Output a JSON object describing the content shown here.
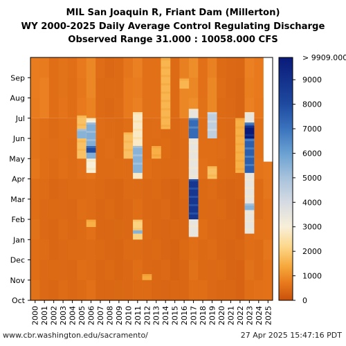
{
  "chart_data": {
    "type": "heatmap",
    "title": "MIL San Joaquin R, Friant Dam (Millerton)",
    "subtitle": "WY 2000-2025 Daily Average Control Regulating Discharge",
    "range_text": "Observed Range 31.000 : 10058.000 CFS",
    "x_tick_labels": [
      "2000",
      "2001",
      "2002",
      "2003",
      "2004",
      "2005",
      "2006",
      "2007",
      "2008",
      "2009",
      "2010",
      "2011",
      "2012",
      "2013",
      "2014",
      "2015",
      "2016",
      "2017",
      "2018",
      "2019",
      "2020",
      "2021",
      "2022",
      "2023",
      "2024",
      "2025"
    ],
    "y_tick_labels": [
      "Oct",
      "Nov",
      "Dec",
      "Jan",
      "Feb",
      "Mar",
      "Apr",
      "May",
      "Jun",
      "Jul",
      "Aug",
      "Sep"
    ],
    "colorbar": {
      "min": 0,
      "max": 9909,
      "ticks": [
        0,
        1000,
        2000,
        3000,
        4000,
        5000,
        6000,
        7000,
        8000,
        9000
      ],
      "top_label": "> 9909.000",
      "stops": [
        {
          "v": 0,
          "c": "#c8510a"
        },
        {
          "v": 700,
          "c": "#e8791c"
        },
        {
          "v": 1400,
          "c": "#f6a93c"
        },
        {
          "v": 2200,
          "c": "#fcd88a"
        },
        {
          "v": 3000,
          "c": "#f8efd9"
        },
        {
          "v": 4000,
          "c": "#d6dbe3"
        },
        {
          "v": 5000,
          "c": "#a7c2dc"
        },
        {
          "v": 6000,
          "c": "#6aa1d2"
        },
        {
          "v": 7000,
          "c": "#3b73bd"
        },
        {
          "v": 8000,
          "c": "#1e4aa0"
        },
        {
          "v": 9909,
          "c": "#0a1a78"
        }
      ]
    },
    "base_flow_by_year": [
      500,
      420,
      380,
      420,
      400,
      450,
      480,
      380,
      380,
      360,
      400,
      450,
      400,
      380,
      370,
      330,
      380,
      500,
      430,
      420,
      380,
      350,
      340,
      500,
      480,
      560
    ],
    "summer_flow_by_year": [
      750,
      800,
      500,
      600,
      500,
      700,
      900,
      450,
      400,
      450,
      700,
      800,
      550,
      550,
      1600,
      450,
      900,
      1000,
      550,
      900,
      450,
      400,
      350,
      800,
      700,
      0
    ],
    "events": [
      {
        "year": 2005,
        "start": "May 01",
        "end": "Jul 05",
        "value": 1800
      },
      {
        "year": 2005,
        "start": "Jun 01",
        "end": "Jun 15",
        "value": 5500
      },
      {
        "year": 2006,
        "start": "Jan 20",
        "end": "Jan 31",
        "value": 1500
      },
      {
        "year": 2006,
        "start": "Apr 10",
        "end": "Jul 01",
        "value": 3000
      },
      {
        "year": 2006,
        "start": "May 01",
        "end": "Jun 25",
        "value": 5600
      },
      {
        "year": 2006,
        "start": "May 10",
        "end": "May 20",
        "value": 8000
      },
      {
        "year": 2010,
        "start": "May 01",
        "end": "Jun 10",
        "value": 1800
      },
      {
        "year": 2011,
        "start": "Jan 01",
        "end": "Jan 31",
        "value": 2100
      },
      {
        "year": 2011,
        "start": "Jan 10",
        "end": "Jan 15",
        "value": 5500
      },
      {
        "year": 2011,
        "start": "Apr 01",
        "end": "Jul 10",
        "value": 2800
      },
      {
        "year": 2011,
        "start": "Apr 10",
        "end": "May 20",
        "value": 5500
      },
      {
        "year": 2012,
        "start": "Nov 01",
        "end": "Nov 10",
        "value": 1400
      },
      {
        "year": 2013,
        "start": "May 01",
        "end": "May 20",
        "value": 1500
      },
      {
        "year": 2014,
        "start": "Jun 15",
        "end": "Sep 30",
        "value": 1600
      },
      {
        "year": 2016,
        "start": "Aug 15",
        "end": "Aug 30",
        "value": 1600
      },
      {
        "year": 2017,
        "start": "Jan 05",
        "end": "Jul 15",
        "value": 3500
      },
      {
        "year": 2017,
        "start": "Feb 01",
        "end": "Mar 31",
        "value": 8800
      },
      {
        "year": 2017,
        "start": "Jun 01",
        "end": "Jul 01",
        "value": 7200
      },
      {
        "year": 2019,
        "start": "Apr 01",
        "end": "Apr 20",
        "value": 1800
      },
      {
        "year": 2019,
        "start": "Jun 01",
        "end": "Jul 10",
        "value": 4500
      },
      {
        "year": 2022,
        "start": "Apr 10",
        "end": "Jul 01",
        "value": 1500
      },
      {
        "year": 2023,
        "start": "Jan 10",
        "end": "Jul 10",
        "value": 3500
      },
      {
        "year": 2023,
        "start": "Feb 15",
        "end": "Feb 25",
        "value": 5500
      },
      {
        "year": 2023,
        "start": "Apr 10",
        "end": "Jun 25",
        "value": 7500
      },
      {
        "year": 2023,
        "start": "Jun 01",
        "end": "Jun 20",
        "value": 9909
      }
    ],
    "data_end": "Apr 27 2025"
  },
  "footer": {
    "left": "www.cbr.washington.edu/sacramento/",
    "right": "27 Apr 2025 15:47:16 PDT"
  }
}
